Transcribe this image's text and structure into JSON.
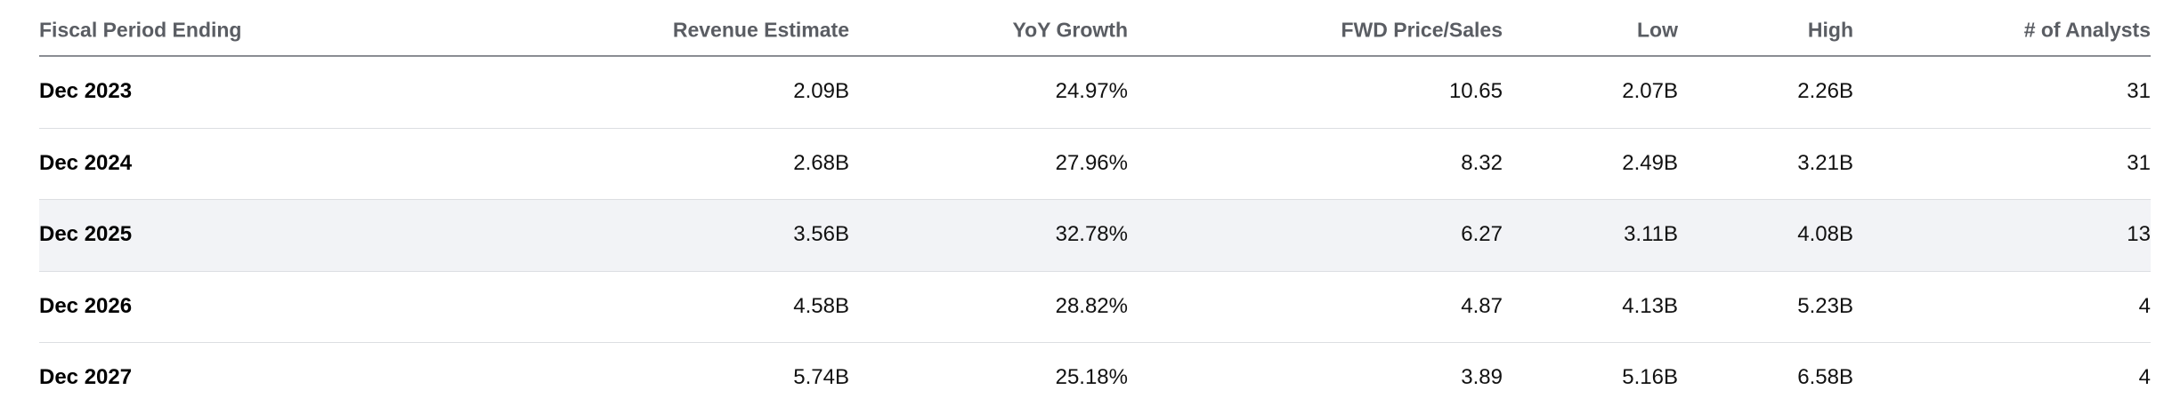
{
  "table": {
    "header": [
      "Fiscal Period Ending",
      "Revenue Estimate",
      "YoY Growth",
      "FWD Price/Sales",
      "Low",
      "High",
      "# of Analysts"
    ],
    "rows": [
      [
        "Dec 2023",
        "2.09B",
        "24.97%",
        "10.65",
        "2.07B",
        "2.26B",
        "31"
      ],
      [
        "Dec 2024",
        "2.68B",
        "27.96%",
        "8.32",
        "2.49B",
        "3.21B",
        "31"
      ],
      [
        "Dec 2025",
        "3.56B",
        "32.78%",
        "6.27",
        "3.11B",
        "4.08B",
        "13"
      ],
      [
        "Dec 2026",
        "4.58B",
        "28.82%",
        "4.87",
        "4.13B",
        "5.23B",
        "4"
      ],
      [
        "Dec 2027",
        "5.74B",
        "25.18%",
        "3.89",
        "5.16B",
        "6.58B",
        "4"
      ]
    ]
  }
}
